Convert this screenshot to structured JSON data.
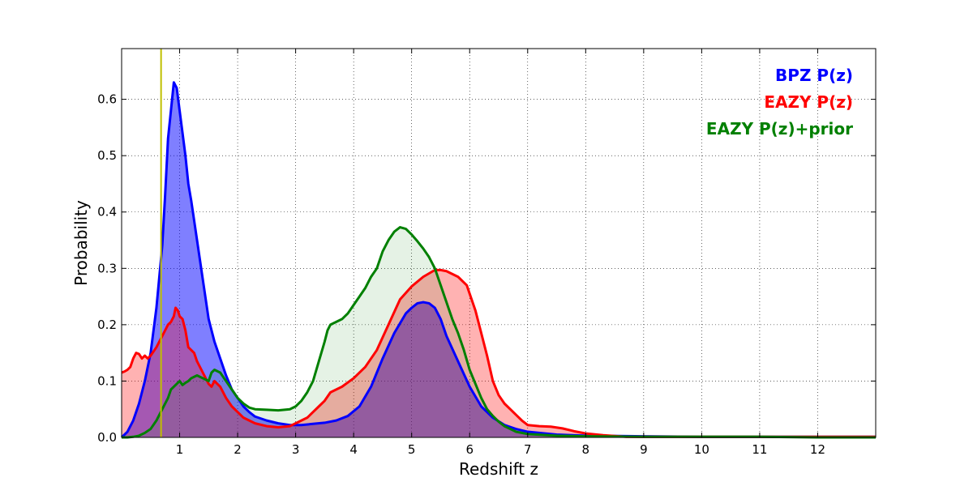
{
  "chart_data": {
    "type": "area",
    "title": "",
    "xlabel": "Redshift z",
    "ylabel": "Probability",
    "xlim": [
      0,
      13
    ],
    "ylim": [
      0,
      0.69
    ],
    "grid": true,
    "legend_position": "top-right",
    "x_ticks": [
      1,
      2,
      3,
      4,
      5,
      6,
      7,
      8,
      9,
      10,
      11,
      12
    ],
    "x_tick_labels": [
      "1",
      "2",
      "3",
      "4",
      "5",
      "6",
      "7",
      "8",
      "9",
      "10",
      "11",
      "12"
    ],
    "y_ticks": [
      0.0,
      0.1,
      0.2,
      0.3,
      0.4,
      0.5,
      0.6
    ],
    "y_tick_labels": [
      "0.0",
      "0.1",
      "0.2",
      "0.3",
      "0.4",
      "0.5",
      "0.6"
    ],
    "vertical_line": {
      "x": 0.68,
      "color": "#bfbf00"
    },
    "series": [
      {
        "name": "BPZ P(z)",
        "legend_label": "BPZ P(z)",
        "color": "#0000ff",
        "fill": "#0000ff",
        "fill_opacity": 0.5,
        "points": [
          [
            0,
            0
          ],
          [
            0.1,
            0.01
          ],
          [
            0.2,
            0.03
          ],
          [
            0.3,
            0.06
          ],
          [
            0.4,
            0.1
          ],
          [
            0.5,
            0.15
          ],
          [
            0.6,
            0.23
          ],
          [
            0.7,
            0.34
          ],
          [
            0.75,
            0.43
          ],
          [
            0.8,
            0.53
          ],
          [
            0.85,
            0.58
          ],
          [
            0.9,
            0.63
          ],
          [
            0.95,
            0.62
          ],
          [
            1.0,
            0.58
          ],
          [
            1.05,
            0.54
          ],
          [
            1.1,
            0.5
          ],
          [
            1.15,
            0.45
          ],
          [
            1.2,
            0.42
          ],
          [
            1.3,
            0.35
          ],
          [
            1.4,
            0.28
          ],
          [
            1.5,
            0.21
          ],
          [
            1.6,
            0.17
          ],
          [
            1.7,
            0.14
          ],
          [
            1.8,
            0.11
          ],
          [
            1.9,
            0.085
          ],
          [
            2.0,
            0.07
          ],
          [
            2.1,
            0.055
          ],
          [
            2.2,
            0.045
          ],
          [
            2.3,
            0.037
          ],
          [
            2.5,
            0.03
          ],
          [
            2.7,
            0.025
          ],
          [
            2.9,
            0.022
          ],
          [
            3.1,
            0.022
          ],
          [
            3.3,
            0.024
          ],
          [
            3.5,
            0.026
          ],
          [
            3.7,
            0.03
          ],
          [
            3.9,
            0.038
          ],
          [
            4.1,
            0.055
          ],
          [
            4.3,
            0.09
          ],
          [
            4.5,
            0.14
          ],
          [
            4.7,
            0.185
          ],
          [
            4.9,
            0.22
          ],
          [
            5.0,
            0.23
          ],
          [
            5.1,
            0.238
          ],
          [
            5.2,
            0.24
          ],
          [
            5.3,
            0.238
          ],
          [
            5.4,
            0.23
          ],
          [
            5.5,
            0.21
          ],
          [
            5.6,
            0.18
          ],
          [
            5.8,
            0.135
          ],
          [
            6.0,
            0.09
          ],
          [
            6.2,
            0.055
          ],
          [
            6.4,
            0.035
          ],
          [
            6.6,
            0.022
          ],
          [
            6.8,
            0.015
          ],
          [
            7.0,
            0.01
          ],
          [
            7.5,
            0.005
          ],
          [
            8.0,
            0.003
          ],
          [
            9.0,
            0.002
          ],
          [
            10.0,
            0.001
          ],
          [
            11.0,
            0.001
          ],
          [
            12.0,
            0.001
          ],
          [
            13.0,
            0.001
          ]
        ]
      },
      {
        "name": "EAZY P(z)",
        "legend_label": "EAZY P(z)",
        "color": "#ff0000",
        "fill": "#ff0000",
        "fill_opacity": 0.3,
        "points": [
          [
            0,
            0.115
          ],
          [
            0.05,
            0.117
          ],
          [
            0.1,
            0.12
          ],
          [
            0.15,
            0.125
          ],
          [
            0.2,
            0.14
          ],
          [
            0.25,
            0.15
          ],
          [
            0.3,
            0.148
          ],
          [
            0.35,
            0.14
          ],
          [
            0.4,
            0.145
          ],
          [
            0.45,
            0.14
          ],
          [
            0.5,
            0.145
          ],
          [
            0.6,
            0.16
          ],
          [
            0.7,
            0.18
          ],
          [
            0.8,
            0.2
          ],
          [
            0.85,
            0.205
          ],
          [
            0.9,
            0.215
          ],
          [
            0.93,
            0.23
          ],
          [
            0.97,
            0.225
          ],
          [
            1.0,
            0.215
          ],
          [
            1.05,
            0.21
          ],
          [
            1.1,
            0.19
          ],
          [
            1.15,
            0.16
          ],
          [
            1.2,
            0.155
          ],
          [
            1.25,
            0.15
          ],
          [
            1.3,
            0.135
          ],
          [
            1.4,
            0.115
          ],
          [
            1.5,
            0.095
          ],
          [
            1.55,
            0.09
          ],
          [
            1.6,
            0.1
          ],
          [
            1.7,
            0.09
          ],
          [
            1.8,
            0.07
          ],
          [
            1.9,
            0.055
          ],
          [
            2.0,
            0.045
          ],
          [
            2.1,
            0.035
          ],
          [
            2.2,
            0.03
          ],
          [
            2.3,
            0.025
          ],
          [
            2.5,
            0.02
          ],
          [
            2.7,
            0.018
          ],
          [
            2.9,
            0.02
          ],
          [
            3.0,
            0.025
          ],
          [
            3.1,
            0.03
          ],
          [
            3.2,
            0.035
          ],
          [
            3.3,
            0.045
          ],
          [
            3.4,
            0.055
          ],
          [
            3.5,
            0.065
          ],
          [
            3.6,
            0.08
          ],
          [
            3.7,
            0.085
          ],
          [
            3.8,
            0.09
          ],
          [
            4.0,
            0.105
          ],
          [
            4.2,
            0.125
          ],
          [
            4.4,
            0.155
          ],
          [
            4.6,
            0.2
          ],
          [
            4.8,
            0.245
          ],
          [
            5.0,
            0.268
          ],
          [
            5.2,
            0.285
          ],
          [
            5.4,
            0.297
          ],
          [
            5.5,
            0.297
          ],
          [
            5.6,
            0.295
          ],
          [
            5.8,
            0.285
          ],
          [
            5.95,
            0.27
          ],
          [
            6.0,
            0.255
          ],
          [
            6.1,
            0.225
          ],
          [
            6.2,
            0.185
          ],
          [
            6.3,
            0.145
          ],
          [
            6.4,
            0.1
          ],
          [
            6.5,
            0.075
          ],
          [
            6.6,
            0.06
          ],
          [
            6.7,
            0.05
          ],
          [
            6.8,
            0.04
          ],
          [
            6.9,
            0.03
          ],
          [
            7.0,
            0.022
          ],
          [
            7.2,
            0.02
          ],
          [
            7.4,
            0.019
          ],
          [
            7.6,
            0.016
          ],
          [
            7.8,
            0.011
          ],
          [
            8.0,
            0.007
          ],
          [
            8.3,
            0.004
          ],
          [
            8.7,
            0.001
          ],
          [
            9.0,
            0.001
          ],
          [
            10.0,
            0.001
          ],
          [
            11.0,
            0.001
          ],
          [
            12.0,
            0.001
          ],
          [
            13.0,
            0.001
          ]
        ]
      },
      {
        "name": "EAZY P(z)+prior",
        "legend_label": "EAZY P(z)+prior",
        "color": "#008000",
        "fill": "#008000",
        "fill_opacity": 0.1,
        "points": [
          [
            0,
            0
          ],
          [
            0.1,
            0
          ],
          [
            0.2,
            0.001
          ],
          [
            0.3,
            0.003
          ],
          [
            0.4,
            0.008
          ],
          [
            0.5,
            0.015
          ],
          [
            0.6,
            0.03
          ],
          [
            0.7,
            0.05
          ],
          [
            0.8,
            0.07
          ],
          [
            0.85,
            0.085
          ],
          [
            0.9,
            0.09
          ],
          [
            0.95,
            0.095
          ],
          [
            1.0,
            0.1
          ],
          [
            1.05,
            0.093
          ],
          [
            1.1,
            0.097
          ],
          [
            1.15,
            0.1
          ],
          [
            1.2,
            0.105
          ],
          [
            1.3,
            0.11
          ],
          [
            1.4,
            0.105
          ],
          [
            1.5,
            0.1
          ],
          [
            1.55,
            0.115
          ],
          [
            1.6,
            0.12
          ],
          [
            1.7,
            0.115
          ],
          [
            1.8,
            0.1
          ],
          [
            1.9,
            0.085
          ],
          [
            2.0,
            0.07
          ],
          [
            2.1,
            0.06
          ],
          [
            2.2,
            0.053
          ],
          [
            2.3,
            0.05
          ],
          [
            2.5,
            0.049
          ],
          [
            2.7,
            0.048
          ],
          [
            2.9,
            0.05
          ],
          [
            3.0,
            0.055
          ],
          [
            3.1,
            0.065
          ],
          [
            3.2,
            0.08
          ],
          [
            3.3,
            0.1
          ],
          [
            3.4,
            0.135
          ],
          [
            3.5,
            0.17
          ],
          [
            3.55,
            0.19
          ],
          [
            3.6,
            0.2
          ],
          [
            3.7,
            0.205
          ],
          [
            3.8,
            0.21
          ],
          [
            3.9,
            0.22
          ],
          [
            4.0,
            0.235
          ],
          [
            4.1,
            0.25
          ],
          [
            4.2,
            0.265
          ],
          [
            4.3,
            0.285
          ],
          [
            4.4,
            0.3
          ],
          [
            4.5,
            0.33
          ],
          [
            4.6,
            0.35
          ],
          [
            4.7,
            0.365
          ],
          [
            4.8,
            0.373
          ],
          [
            4.9,
            0.37
          ],
          [
            5.0,
            0.36
          ],
          [
            5.1,
            0.348
          ],
          [
            5.2,
            0.335
          ],
          [
            5.3,
            0.32
          ],
          [
            5.4,
            0.3
          ],
          [
            5.5,
            0.27
          ],
          [
            5.6,
            0.24
          ],
          [
            5.7,
            0.21
          ],
          [
            5.8,
            0.185
          ],
          [
            5.9,
            0.155
          ],
          [
            6.0,
            0.12
          ],
          [
            6.1,
            0.095
          ],
          [
            6.2,
            0.07
          ],
          [
            6.3,
            0.05
          ],
          [
            6.4,
            0.038
          ],
          [
            6.5,
            0.028
          ],
          [
            6.6,
            0.02
          ],
          [
            6.7,
            0.015
          ],
          [
            6.8,
            0.01
          ],
          [
            7.0,
            0.006
          ],
          [
            7.5,
            0.003
          ],
          [
            8.0,
            0.002
          ],
          [
            9.0,
            0.001
          ],
          [
            10.0,
            0.001
          ],
          [
            11.0,
            0.001
          ],
          [
            12.0,
            0
          ],
          [
            13.0,
            0
          ]
        ]
      }
    ]
  }
}
